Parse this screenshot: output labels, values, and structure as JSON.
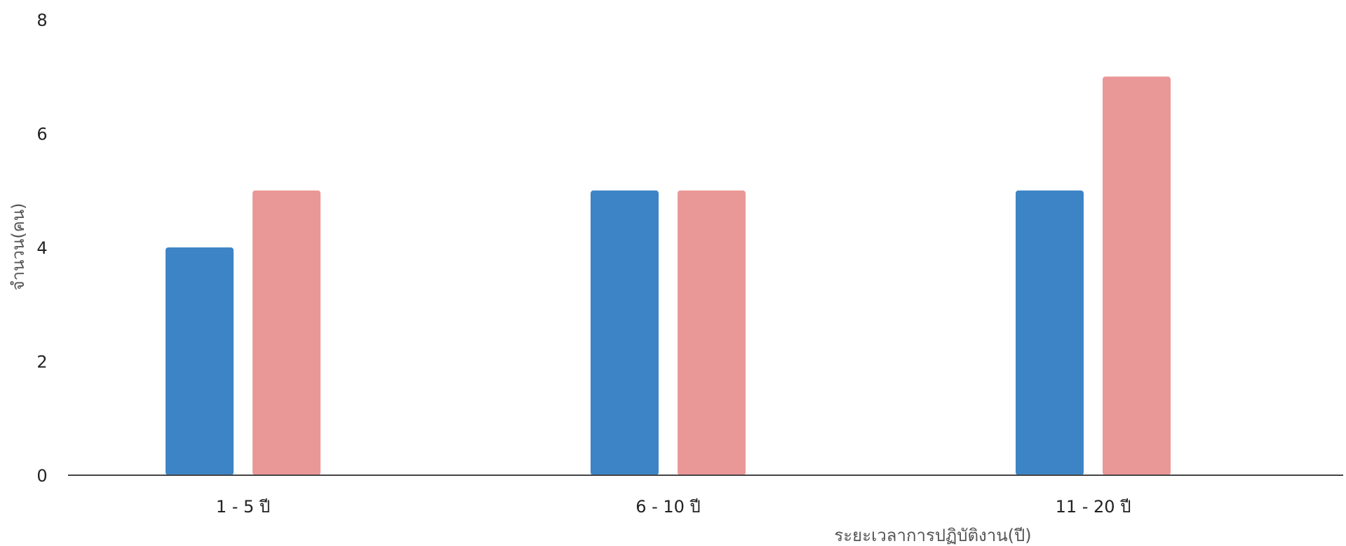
{
  "chart_data": {
    "type": "bar",
    "categories": [
      "1 - 5 ปี",
      "6 - 10 ปี",
      "11 - 20 ปี"
    ],
    "series": [
      {
        "values": [
          4,
          5,
          5
        ],
        "color": "#3d84c6"
      },
      {
        "values": [
          5,
          5,
          7
        ],
        "color": "#ea9797"
      }
    ],
    "xlabel": "ระยะเวลาการปฏิบัติงาน(ปี)",
    "ylabel": "จำนวน(คน)",
    "ylim": [
      0,
      8
    ],
    "yticks": [
      0,
      2,
      4,
      6,
      8
    ],
    "grid": false,
    "legend": "none"
  }
}
